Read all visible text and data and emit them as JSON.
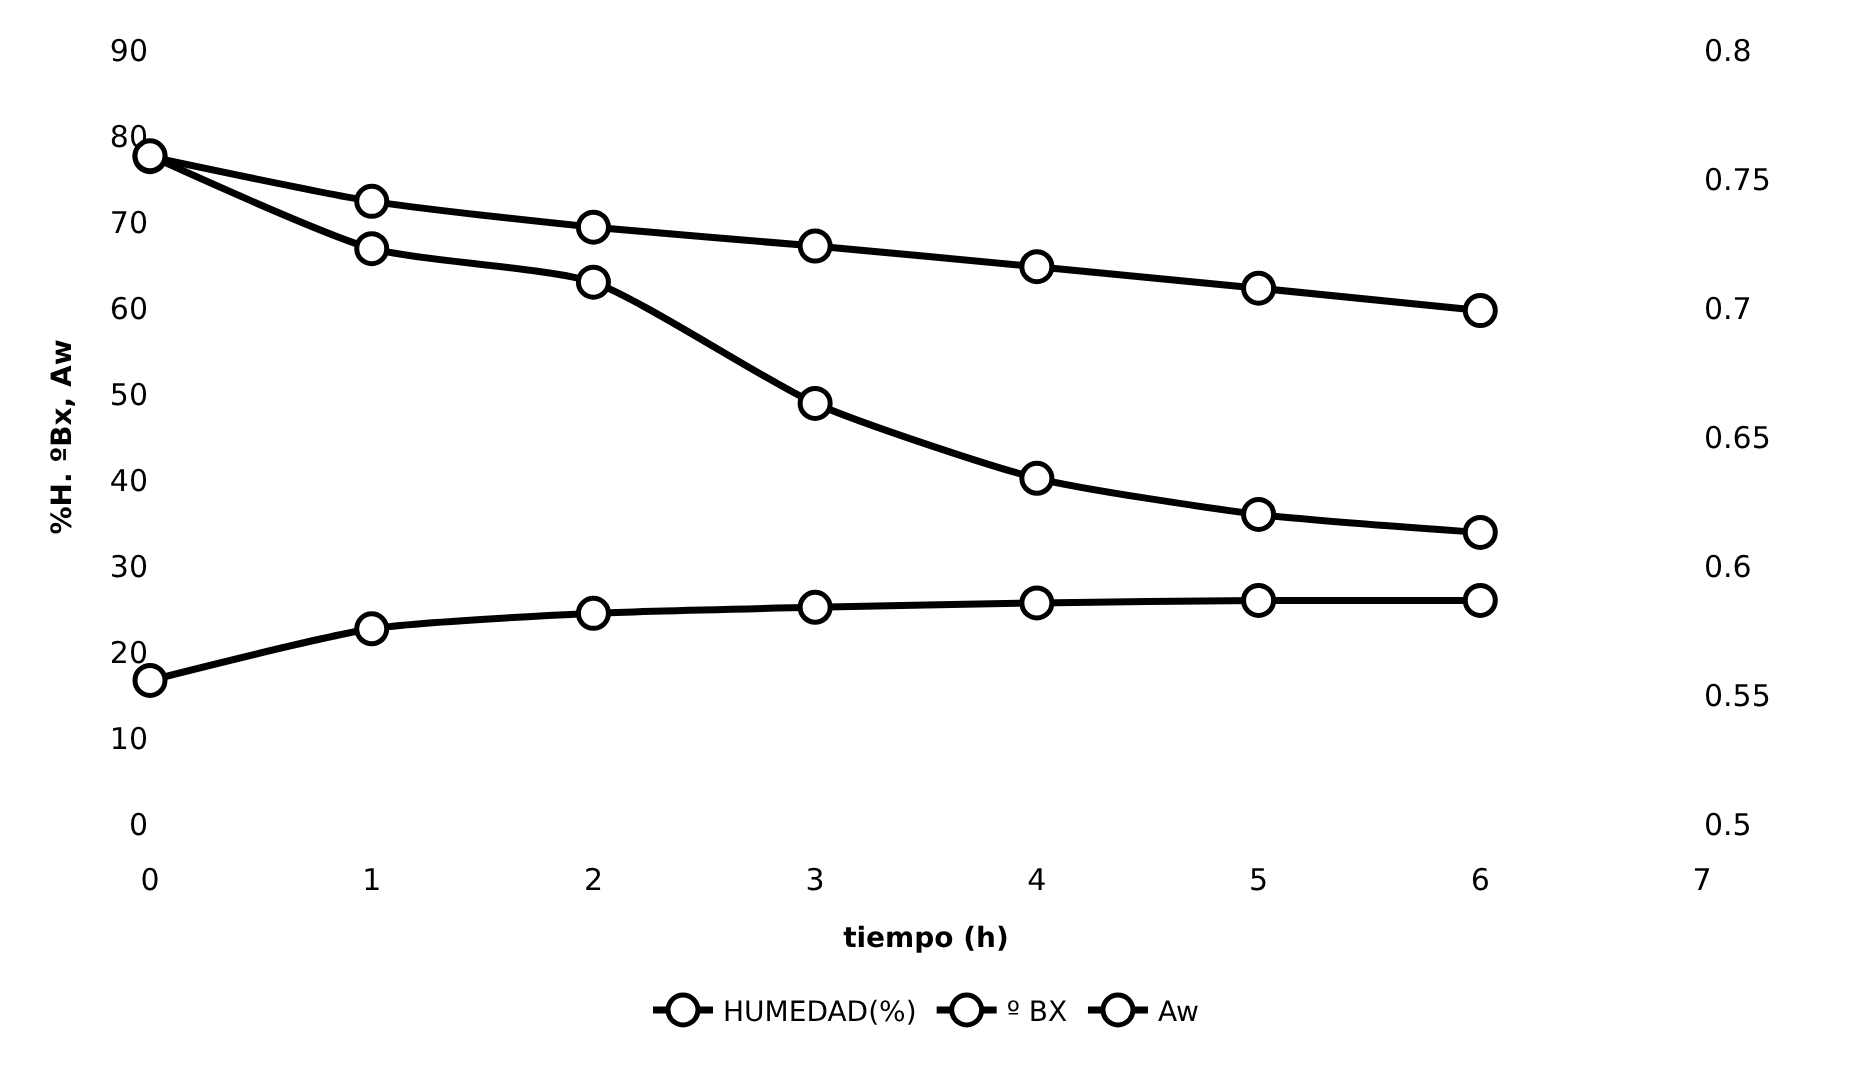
{
  "chart_data": {
    "type": "line",
    "xlabel": "tiempo (h)",
    "ylabel": "%H. ºBx, Aw",
    "x": [
      0,
      1,
      2,
      3,
      4,
      5,
      6
    ],
    "series": [
      {
        "name": "HUMEDAD(%)",
        "color": "#000000",
        "values": [
          77.6,
          72.4,
          69.4,
          67.2,
          64.8,
          62.3,
          59.7
        ]
      },
      {
        "name": "º BX",
        "color": "#000000",
        "values": [
          16.7,
          22.7,
          24.5,
          25.2,
          25.7,
          26.0,
          26.0
        ]
      },
      {
        "name": "Aw",
        "color": "#000000",
        "axis": "y2",
        "values": [
          0.759,
          0.723,
          0.71,
          0.663,
          0.634,
          0.62,
          0.613
        ]
      }
    ],
    "xlim": [
      0,
      7
    ],
    "xticks": [
      0,
      1,
      2,
      3,
      4,
      5,
      6,
      7
    ],
    "ylim": [
      0,
      90
    ],
    "yticks": [
      0,
      10,
      20,
      30,
      40,
      50,
      60,
      70,
      80,
      90
    ],
    "y2lim": [
      0.5,
      0.8
    ],
    "y2ticks": [
      0.5,
      0.55,
      0.6,
      0.65,
      0.7,
      0.75,
      0.8
    ],
    "legend": "bottom",
    "marker": "circle",
    "line_style": "solid"
  }
}
